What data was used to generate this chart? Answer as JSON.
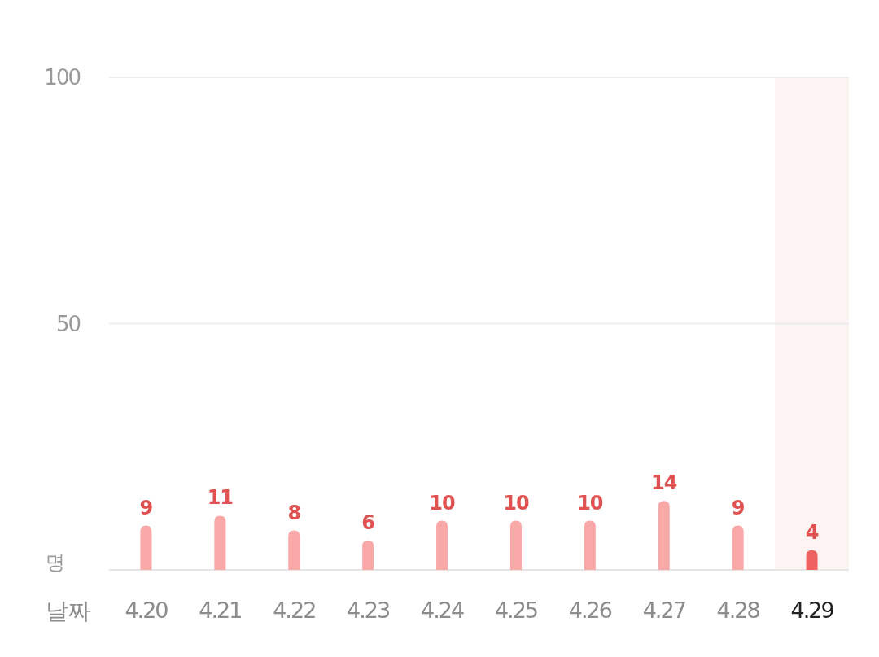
{
  "chart_data": {
    "type": "bar",
    "xlabel": "날짜",
    "ylabel": "명",
    "categories": [
      "4.20",
      "4.21",
      "4.22",
      "4.23",
      "4.24",
      "4.25",
      "4.26",
      "4.27",
      "4.28",
      "4.29"
    ],
    "values": [
      9,
      11,
      8,
      6,
      10,
      10,
      10,
      14,
      9,
      4
    ],
    "colors": [
      "#f9a8a8",
      "#f9a8a8",
      "#f9a8a8",
      "#f9a8a8",
      "#f9a8a8",
      "#f9a8a8",
      "#f9a8a8",
      "#f9a8a8",
      "#f9a8a8",
      "#ee6262"
    ],
    "data_labels": true,
    "ylim": [
      0,
      100
    ],
    "yticks": [
      {
        "value": 0,
        "label": null
      },
      50,
      100
    ],
    "grid": "y",
    "bands": [
      {
        "axis": "x",
        "from": "4.29",
        "to": "4.29",
        "color": "#fdf3f2"
      }
    ]
  }
}
